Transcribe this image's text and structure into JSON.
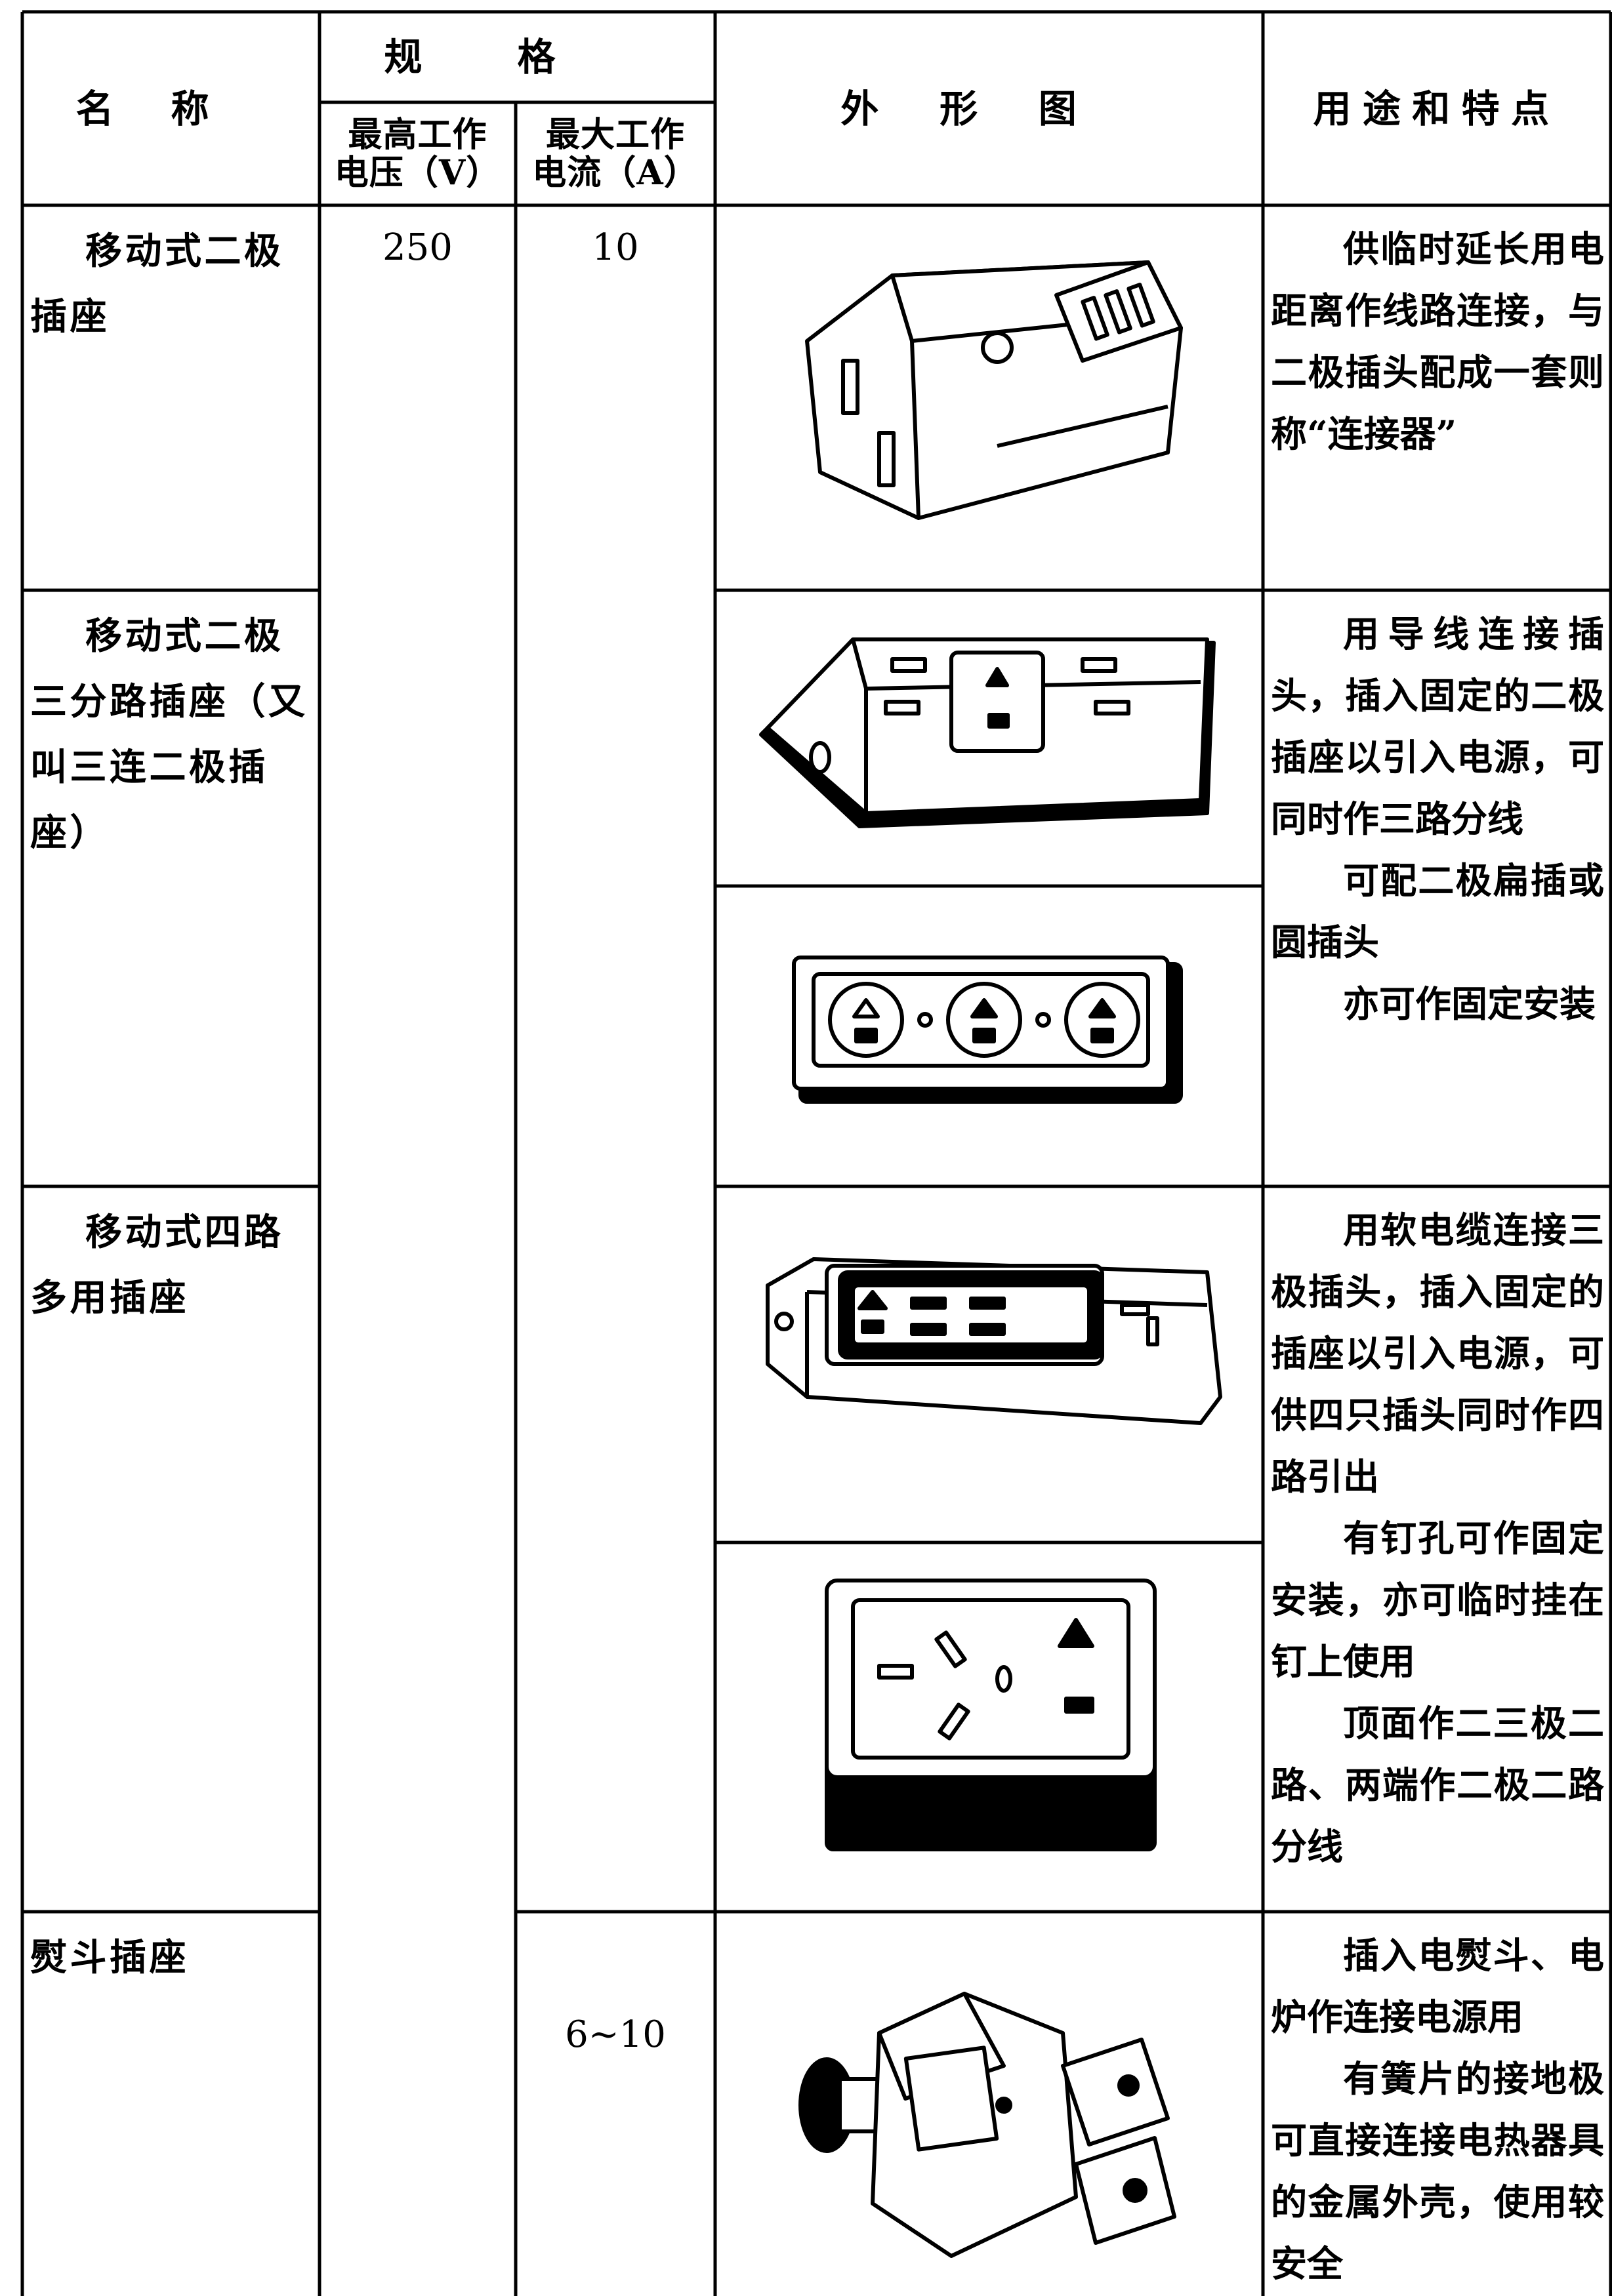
{
  "header": {
    "name": "名称",
    "spec": "规格",
    "voltage": [
      "最高工作",
      "电压（V）"
    ],
    "current": [
      "最大工作",
      "电流（A）"
    ],
    "figure": "外形图",
    "usage": "用途和特点"
  },
  "rows": [
    {
      "name": "移动式二极插座",
      "voltage": "250",
      "current": "10",
      "usage": [
        "供临时延长用电距离作线路连接，与二极插头配成一套则称“连接器”"
      ]
    },
    {
      "name": "移动式二极三分路插座（又叫三连二极插座）",
      "usage": [
        "用导线连接插头，插入固定的二极插座以引入电源，可同时作三路分线",
        "可配二极扁插或圆插头",
        "亦可作固定安装"
      ]
    },
    {
      "name": "移动式四路多用插座",
      "usage": [
        "用软电缆连接三极插头，插入固定的插座以引入电源，可供四只插头同时作四路引出",
        "有钉孔可作固定安装，亦可临时挂在钉上使用",
        "顶面作二三极二路、两端作二极二路分线"
      ]
    },
    {
      "name": "熨斗插座",
      "current": "6~10",
      "usage": [
        "插入电熨斗、电炉作连接电源用",
        "有簧片的接地极可直接连接电热器具的金属外壳，使用较安全"
      ]
    }
  ]
}
